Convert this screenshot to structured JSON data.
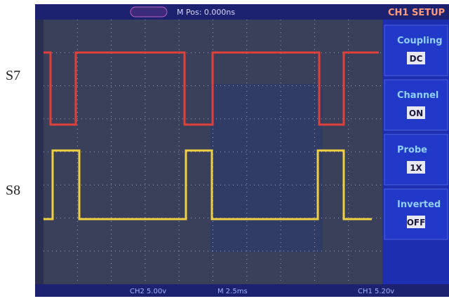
{
  "labels": [
    "S7",
    "S8"
  ],
  "top_bar": {
    "badge": "",
    "position": "M Pos: 0.000ns",
    "menu_title": "CH1 SETUP"
  },
  "menu": [
    {
      "title": "Coupling",
      "value": "DC"
    },
    {
      "title": "Channel",
      "value": "ON"
    },
    {
      "title": "Probe",
      "value": "1X"
    },
    {
      "title": "Inverted",
      "value": "OFF"
    }
  ],
  "status_bar": [
    "CH2 5.00v",
    "M 2.5ms",
    "CH1 5.20v"
  ]
}
